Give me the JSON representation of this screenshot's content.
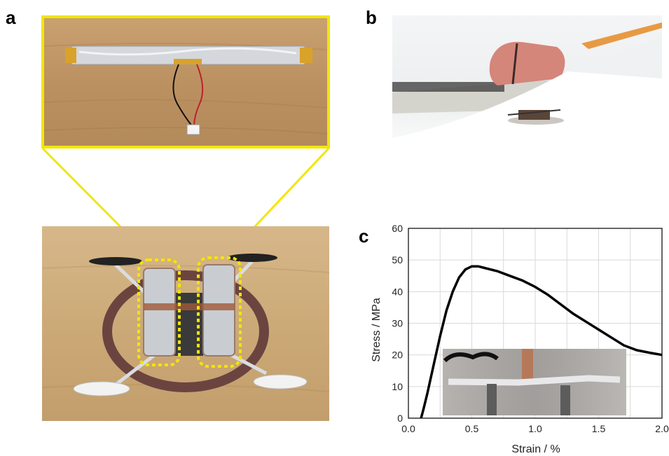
{
  "panels": {
    "a": {
      "label": "a"
    },
    "b": {
      "label": "b"
    },
    "c": {
      "label": "c"
    }
  },
  "colors": {
    "highlight": "#f2e600",
    "curve": "#000000",
    "grid": "#d9d9d9"
  },
  "chart_data": {
    "type": "line",
    "xlabel": "Strain  /  %",
    "ylabel": "Stress  /  MPa",
    "xlim": [
      0,
      2.0
    ],
    "ylim": [
      0,
      60
    ],
    "xticks": [
      "0.0",
      "0.5",
      "1.0",
      "1.5",
      "2.0"
    ],
    "yticks": [
      "0",
      "10",
      "20",
      "30",
      "40",
      "50",
      "60"
    ],
    "grid": true,
    "series": [
      {
        "x": [
          0.1,
          0.12,
          0.15,
          0.2,
          0.25,
          0.3,
          0.35,
          0.4,
          0.45,
          0.5,
          0.55,
          0.6,
          0.7,
          0.8,
          0.9,
          1.0,
          1.1,
          1.2,
          1.3,
          1.4,
          1.5,
          1.6,
          1.7,
          1.8,
          1.9,
          2.0
        ],
        "y": [
          0,
          3,
          8,
          17,
          26,
          34,
          40,
          44.5,
          47,
          48,
          48,
          47.5,
          46.5,
          45,
          43.5,
          41.5,
          39,
          36,
          33,
          30.5,
          28,
          25.5,
          23,
          21.5,
          20.7,
          20
        ]
      }
    ]
  }
}
